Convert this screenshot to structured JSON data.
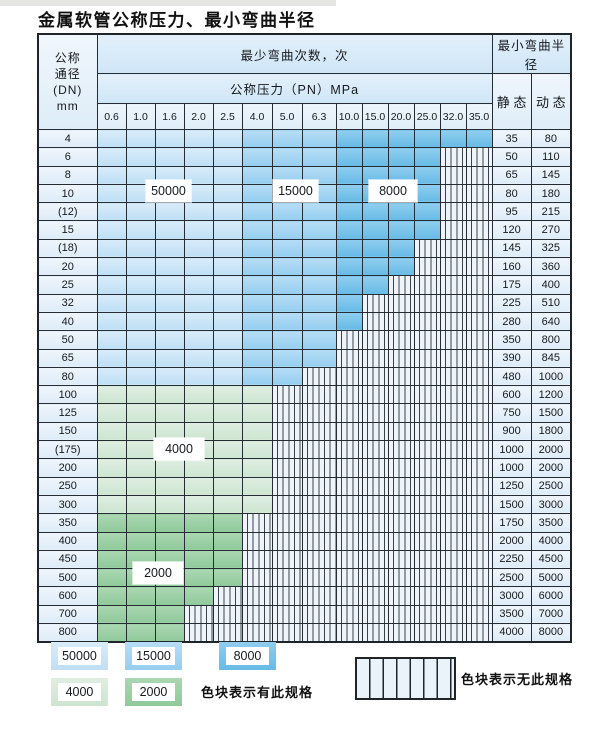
{
  "title": "金属软管公称压力、最小弯曲半径",
  "table": {
    "header": {
      "dn_lines": [
        "公称",
        "通径",
        "(DN)",
        "mm"
      ],
      "cycles": "最少弯曲次数，次",
      "pressure": "公称压力（PN）MPa",
      "radius": "最小弯曲半径",
      "static": "静 态",
      "dynamic": "动 态",
      "pressures": [
        "0.6",
        "1.0",
        "1.6",
        "2.0",
        "2.5",
        "4.0",
        "5.0",
        "6.3",
        "10.0",
        "15.0",
        "20.0",
        "25.0",
        "32.0",
        "35.0"
      ]
    },
    "rows": [
      {
        "dn": "4",
        "zone": "blue",
        "last": 13,
        "static": "35",
        "dynamic": "80"
      },
      {
        "dn": "6",
        "zone": "blue",
        "last": 11,
        "static": "50",
        "dynamic": "110"
      },
      {
        "dn": "8",
        "zone": "blue",
        "last": 11,
        "static": "65",
        "dynamic": "145"
      },
      {
        "dn": "10",
        "zone": "blue",
        "last": 11,
        "static": "80",
        "dynamic": "180"
      },
      {
        "dn": "(12)",
        "zone": "blue",
        "last": 11,
        "static": "95",
        "dynamic": "215"
      },
      {
        "dn": "15",
        "zone": "blue",
        "last": 11,
        "static": "120",
        "dynamic": "270"
      },
      {
        "dn": "(18)",
        "zone": "blue",
        "last": 10,
        "static": "145",
        "dynamic": "325"
      },
      {
        "dn": "20",
        "zone": "blue",
        "last": 10,
        "static": "160",
        "dynamic": "360"
      },
      {
        "dn": "25",
        "zone": "blue",
        "last": 9,
        "static": "175",
        "dynamic": "400"
      },
      {
        "dn": "32",
        "zone": "blue",
        "last": 8,
        "static": "225",
        "dynamic": "510"
      },
      {
        "dn": "40",
        "zone": "blue",
        "last": 8,
        "static": "280",
        "dynamic": "640"
      },
      {
        "dn": "50",
        "zone": "blue",
        "last": 7,
        "static": "350",
        "dynamic": "800"
      },
      {
        "dn": "65",
        "zone": "blue",
        "last": 7,
        "static": "390",
        "dynamic": "845"
      },
      {
        "dn": "80",
        "zone": "blue",
        "last": 6,
        "static": "480",
        "dynamic": "1000"
      },
      {
        "dn": "100",
        "zone": "g1",
        "last": 5,
        "static": "600",
        "dynamic": "1200"
      },
      {
        "dn": "125",
        "zone": "g1",
        "last": 5,
        "static": "750",
        "dynamic": "1500"
      },
      {
        "dn": "150",
        "zone": "g1",
        "last": 5,
        "static": "900",
        "dynamic": "1800"
      },
      {
        "dn": "(175)",
        "zone": "g1",
        "last": 5,
        "static": "1000",
        "dynamic": "2000"
      },
      {
        "dn": "200",
        "zone": "g1",
        "last": 5,
        "static": "1000",
        "dynamic": "2000"
      },
      {
        "dn": "250",
        "zone": "g1",
        "last": 5,
        "static": "1250",
        "dynamic": "2500"
      },
      {
        "dn": "300",
        "zone": "g1",
        "last": 5,
        "static": "1500",
        "dynamic": "3000"
      },
      {
        "dn": "350",
        "zone": "g2",
        "last": 4,
        "static": "1750",
        "dynamic": "3500"
      },
      {
        "dn": "400",
        "zone": "g2",
        "last": 4,
        "static": "2000",
        "dynamic": "4000"
      },
      {
        "dn": "450",
        "zone": "g2",
        "last": 4,
        "static": "2250",
        "dynamic": "4500"
      },
      {
        "dn": "500",
        "zone": "g2",
        "last": 4,
        "static": "2500",
        "dynamic": "5000"
      },
      {
        "dn": "600",
        "zone": "g2",
        "last": 3,
        "static": "3000",
        "dynamic": "6000"
      },
      {
        "dn": "700",
        "zone": "g2",
        "last": 2,
        "static": "3500",
        "dynamic": "7000"
      },
      {
        "dn": "800",
        "zone": "g2",
        "last": 2,
        "static": "4000",
        "dynamic": "8000"
      }
    ]
  },
  "overlay_labels": {
    "l50000": "50000",
    "l15000": "15000",
    "l8000": "8000",
    "l4000": "4000",
    "l2000": "2000"
  },
  "legend": {
    "items": [
      {
        "label": "50000",
        "zone": "b1",
        "color": "#c9e4f6"
      },
      {
        "label": "15000",
        "zone": "b2",
        "color": "#a5d5f1"
      },
      {
        "label": "8000",
        "zone": "b3",
        "color": "#7dc4ea"
      },
      {
        "label": "4000",
        "zone": "g1",
        "color": "#d5e9d7"
      },
      {
        "label": "2000",
        "zone": "g2",
        "color": "#9dd0a6"
      }
    ],
    "has_note": "色块表示有此规格",
    "none_note": "色块表示无此规格"
  },
  "colors": {
    "blue_50000": "#c9e4f6",
    "blue_15000": "#a5d5f1",
    "blue_8000": "#7dc4ea",
    "green_4000": "#d5e9d7",
    "green_2000": "#9dd0a6",
    "grid_border": "#262c33",
    "no_spec_bg": "#eef4fa"
  }
}
